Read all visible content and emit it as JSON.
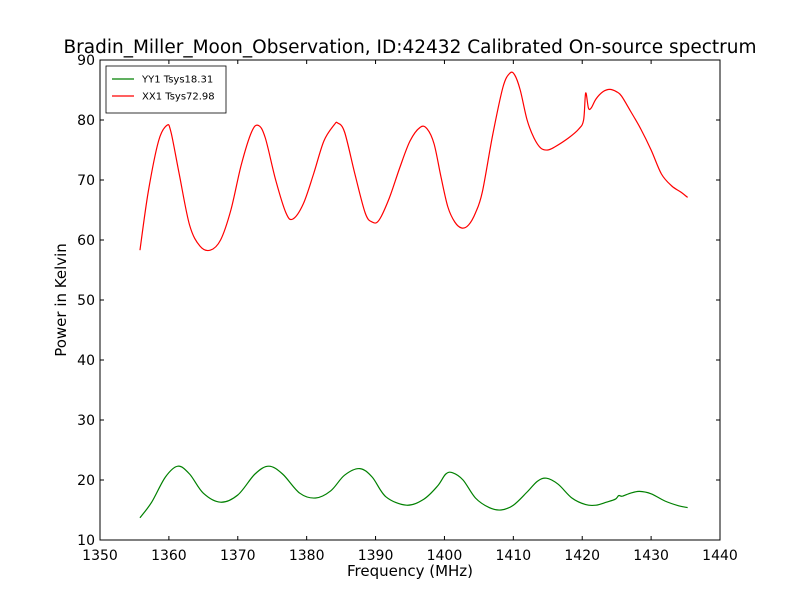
{
  "chart_data": {
    "type": "line",
    "title": "Bradin_Miller_Moon_Observation, ID:42432 Calibrated On-source spectrum",
    "xlabel": "Frequency (MHz)",
    "ylabel": "Power in Kelvin",
    "xlim": [
      1350,
      1440
    ],
    "ylim": [
      10,
      90
    ],
    "xticks": [
      1350,
      1360,
      1370,
      1380,
      1390,
      1400,
      1410,
      1420,
      1430,
      1440
    ],
    "yticks": [
      10,
      20,
      30,
      40,
      50,
      60,
      70,
      80,
      90
    ],
    "grid": false,
    "legend_position": "top-left",
    "series": [
      {
        "name": "YY1 Tsys18.31",
        "color": "#008000",
        "x": [
          1355.8,
          1357.5,
          1359.5,
          1361.3,
          1363.0,
          1365.0,
          1367.5,
          1370.0,
          1372.5,
          1374.5,
          1376.5,
          1379.0,
          1381.3,
          1383.5,
          1385.5,
          1387.7,
          1389.5,
          1391.5,
          1394.5,
          1397.0,
          1399.0,
          1400.2,
          1401.2,
          1402.7,
          1404.5,
          1406.5,
          1408.2,
          1410.0,
          1412.0,
          1413.5,
          1414.8,
          1416.5,
          1418.5,
          1420.5,
          1422.0,
          1423.5,
          1424.8,
          1425.3,
          1425.8,
          1427.0,
          1428.3,
          1430.0,
          1432.0,
          1434.0,
          1435.3
        ],
        "values": [
          13.7,
          16.3,
          20.5,
          22.3,
          21.0,
          17.8,
          16.3,
          17.5,
          21.0,
          22.3,
          21.0,
          17.8,
          17.0,
          18.2,
          20.8,
          21.9,
          20.5,
          17.2,
          15.8,
          16.8,
          19.0,
          21.0,
          21.2,
          20.0,
          17.0,
          15.4,
          15.0,
          15.8,
          18.0,
          19.8,
          20.3,
          19.3,
          17.0,
          15.9,
          15.8,
          16.3,
          16.8,
          17.4,
          17.3,
          17.8,
          18.1,
          17.7,
          16.5,
          15.7,
          15.4
        ]
      },
      {
        "name": "XX1 Tsys72.98",
        "color": "#ff0000",
        "x": [
          1355.8,
          1357.0,
          1358.5,
          1359.7,
          1360.3,
          1361.5,
          1363.0,
          1364.5,
          1366.0,
          1367.5,
          1369.0,
          1370.5,
          1372.0,
          1373.0,
          1374.0,
          1375.5,
          1377.0,
          1378.0,
          1379.5,
          1381.0,
          1382.5,
          1384.0,
          1384.5,
          1385.5,
          1387.0,
          1388.5,
          1389.5,
          1390.5,
          1392.0,
          1393.5,
          1395.0,
          1396.5,
          1397.5,
          1398.5,
          1399.5,
          1400.5,
          1401.5,
          1402.5,
          1403.5,
          1404.5,
          1405.5,
          1407.0,
          1408.5,
          1409.5,
          1410.2,
          1411.0,
          1412.0,
          1413.0,
          1414.0,
          1415.0,
          1416.0,
          1418.0,
          1419.5,
          1420.2,
          1420.5,
          1420.9,
          1421.3,
          1422.0,
          1423.0,
          1424.0,
          1425.0,
          1425.7,
          1427.0,
          1428.5,
          1430.0,
          1431.5,
          1433.0,
          1434.3,
          1435.3
        ],
        "values": [
          58.3,
          68.0,
          76.5,
          79.1,
          78.0,
          71.0,
          62.5,
          59.0,
          58.3,
          60.0,
          65.0,
          72.5,
          78.0,
          79.1,
          77.0,
          70.0,
          64.5,
          63.5,
          66.0,
          71.0,
          76.5,
          79.2,
          79.5,
          78.0,
          71.0,
          64.5,
          63.0,
          63.3,
          67.0,
          72.0,
          76.5,
          78.8,
          78.5,
          76.0,
          70.5,
          65.5,
          63.0,
          62.0,
          62.5,
          64.5,
          68.0,
          77.5,
          85.5,
          87.8,
          87.5,
          85.0,
          80.0,
          77.0,
          75.3,
          75.0,
          75.5,
          77.0,
          78.5,
          80.0,
          84.5,
          82.0,
          82.0,
          83.5,
          84.7,
          85.1,
          84.7,
          84.0,
          81.5,
          78.5,
          75.0,
          71.0,
          69.0,
          68.0,
          67.1
        ]
      }
    ]
  }
}
